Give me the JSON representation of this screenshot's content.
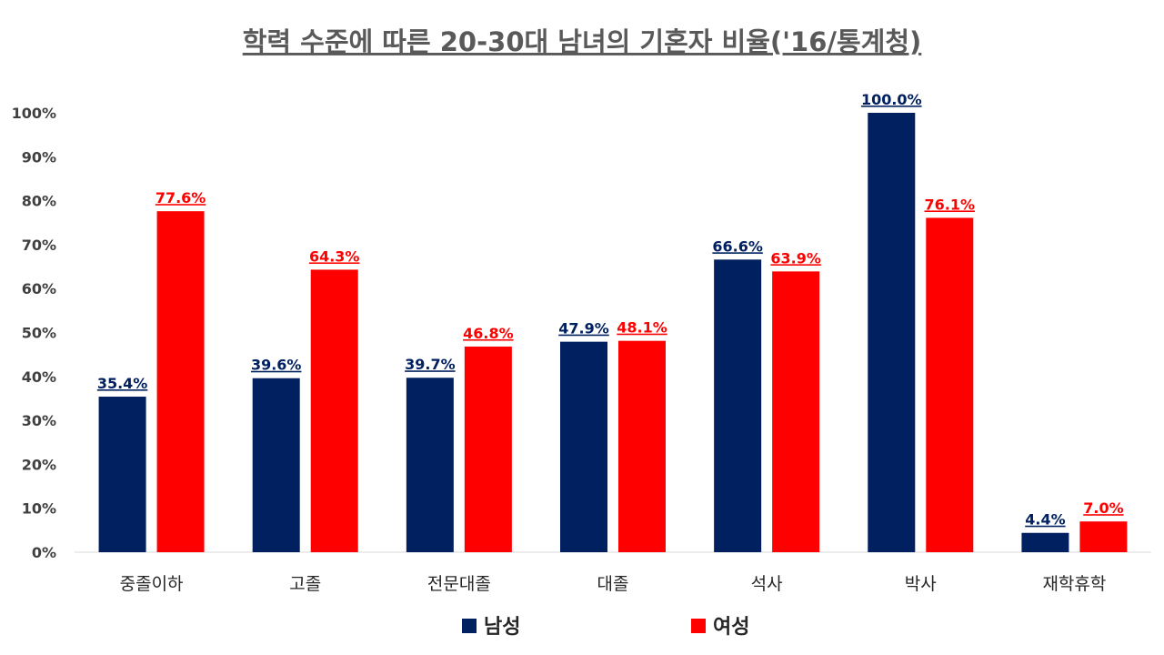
{
  "chart_data": {
    "type": "bar",
    "title": "학력 수준에 따른 20-30대 남녀의 기혼자 비율('16/통계청)",
    "xlabel": "",
    "ylabel": "",
    "categories": [
      "중졸이하",
      "고졸",
      "전문대졸",
      "대졸",
      "석사",
      "박사",
      "재학휴학"
    ],
    "series": [
      {
        "name": "남성",
        "color": "#002060",
        "values": [
          35.4,
          39.6,
          39.7,
          47.9,
          66.6,
          100.0,
          4.4
        ],
        "labels": [
          "35.4%",
          "39.6%",
          "39.7%",
          "47.9%",
          "66.6%",
          "100.0%",
          "4.4%"
        ]
      },
      {
        "name": "여성",
        "color": "#FF0000",
        "values": [
          77.6,
          64.3,
          46.8,
          48.1,
          63.9,
          76.1,
          7.0
        ],
        "labels": [
          "77.6%",
          "64.3%",
          "46.8%",
          "48.1%",
          "63.9%",
          "76.1%",
          "7.0%"
        ]
      }
    ],
    "ylim": [
      0,
      100
    ],
    "yticks": [
      "0%",
      "10%",
      "20%",
      "30%",
      "40%",
      "50%",
      "60%",
      "70%",
      "80%",
      "90%",
      "100%"
    ],
    "grid": false,
    "legend": "bottom"
  }
}
